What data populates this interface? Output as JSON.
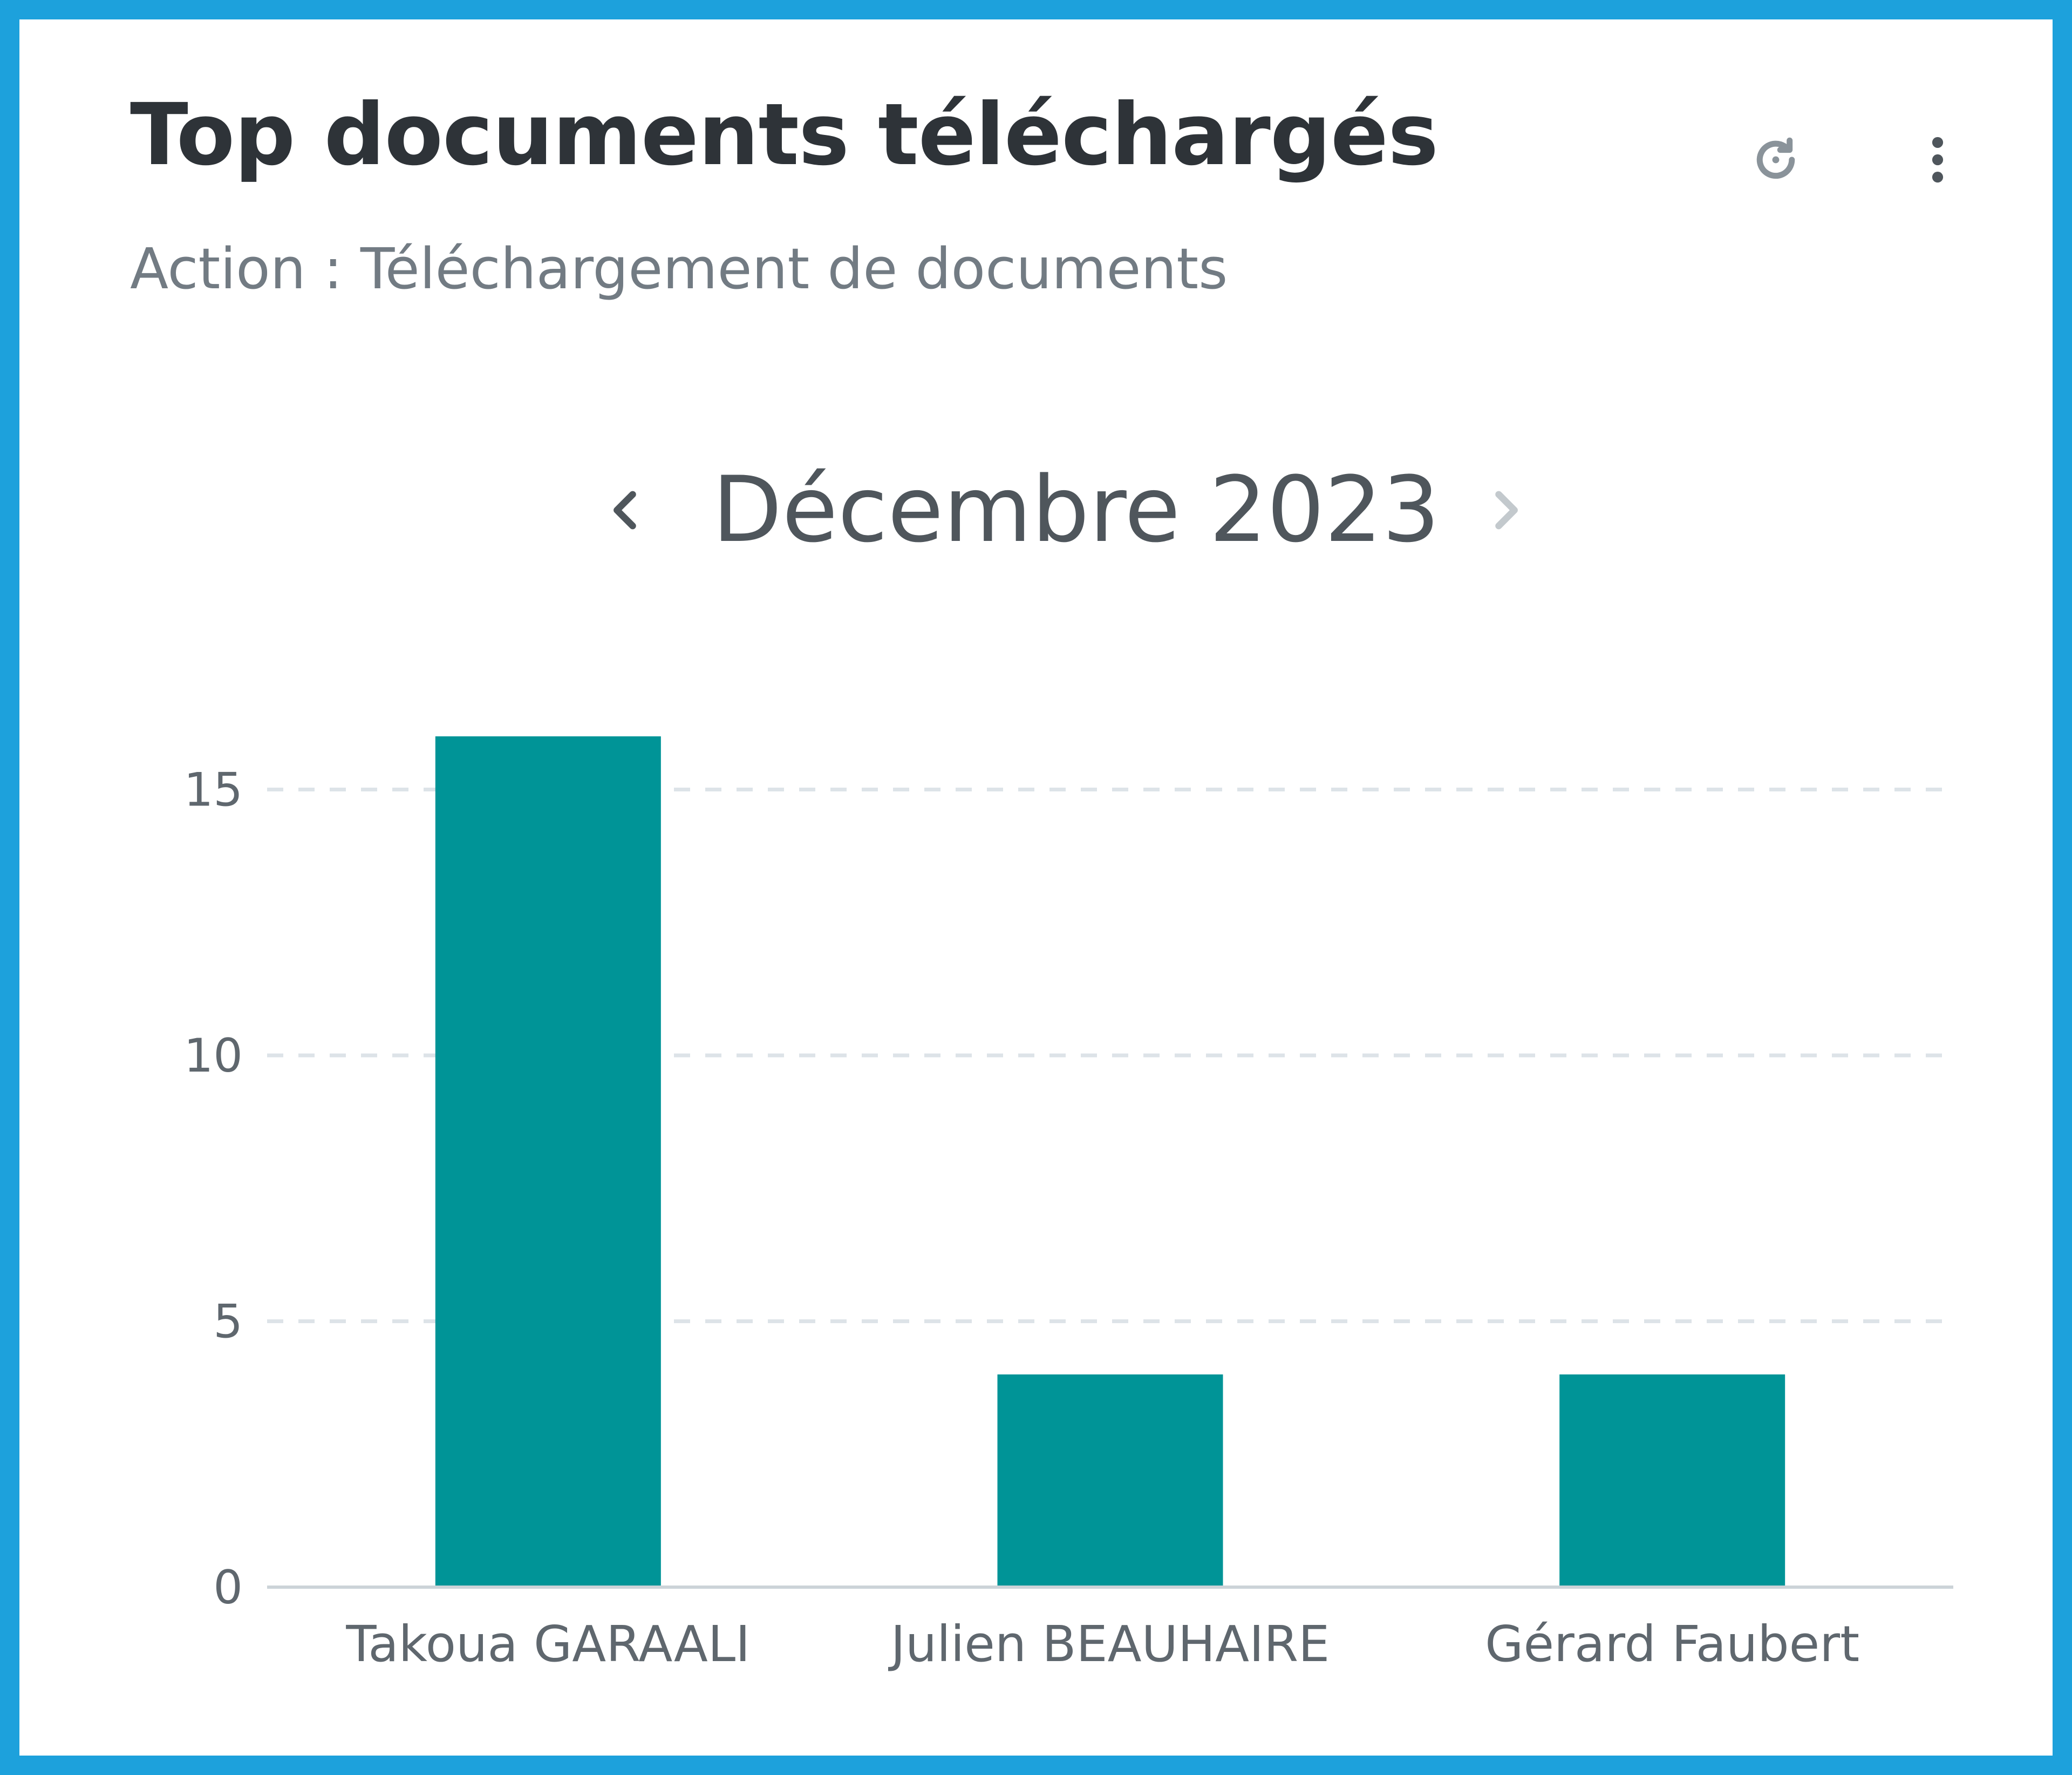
{
  "widget": {
    "title": "Top documents téléchargés",
    "subtitle": "Action : Téléchargement de documents",
    "refresh_icon": "refresh-icon",
    "menu_icon": "more-vertical-icon"
  },
  "period": {
    "label": "Décembre 2023",
    "prev_icon": "chevron-left-icon",
    "next_icon": "chevron-right-icon"
  },
  "colors": {
    "border": "#1da1dc",
    "bar": "#009497",
    "title": "#2e3338",
    "subtitle": "#727b83",
    "axis_text": "#5f676e",
    "grid": "#dde3e8"
  },
  "chart_data": {
    "type": "bar",
    "categories": [
      "Takoua GARAALI",
      "Julien BEAUHAIRE",
      "Gérard Faubert"
    ],
    "values": [
      16,
      4,
      4
    ],
    "title": "",
    "xlabel": "",
    "ylabel": "",
    "ylim": [
      0,
      15
    ],
    "yticks": [
      0,
      5,
      10,
      15
    ],
    "grid": true,
    "legend": "none"
  }
}
